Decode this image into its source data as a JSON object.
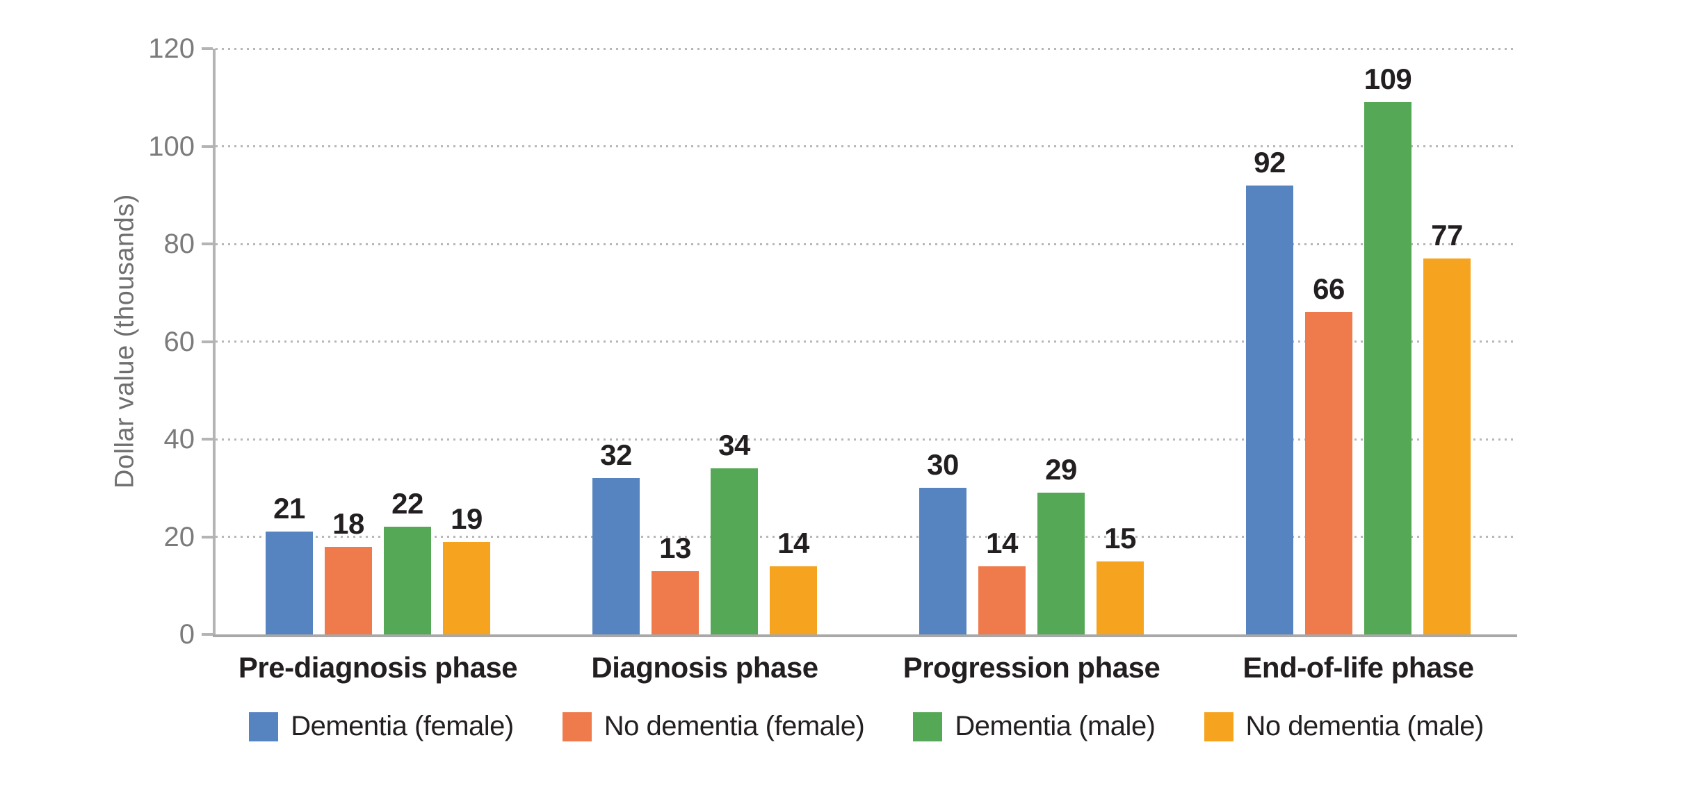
{
  "chart_data": {
    "type": "bar",
    "title": "",
    "ylabel": "Dollar value (thousands)",
    "xlabel": "",
    "ylim": [
      0,
      120
    ],
    "yticks": [
      0,
      20,
      40,
      60,
      80,
      100,
      120
    ],
    "grid": "horizontal-dotted",
    "legend_position": "bottom",
    "value_labels": "above bars, bold",
    "categories": [
      "Pre-diagnosis phase",
      "Diagnosis phase",
      "Progression phase",
      "End-of-life phase"
    ],
    "series": [
      {
        "name": "Dementia (female)",
        "color": "#5584C1",
        "values": [
          21,
          32,
          30,
          92
        ]
      },
      {
        "name": "No dementia (female)",
        "color": "#EF7A4B",
        "values": [
          18,
          13,
          14,
          66
        ]
      },
      {
        "name": "Dementia (male)",
        "color": "#55A956",
        "values": [
          22,
          34,
          29,
          109
        ]
      },
      {
        "name": "No dementia (male)",
        "color": "#F6A41F",
        "values": [
          19,
          14,
          15,
          77
        ]
      }
    ],
    "colors": {
      "axis": "#b4b4b4",
      "baseline": "#a8a8a8",
      "grid_dots": "#b7b7b7",
      "tick_text": "#7b7b7b",
      "label_text": "#231f20"
    }
  }
}
